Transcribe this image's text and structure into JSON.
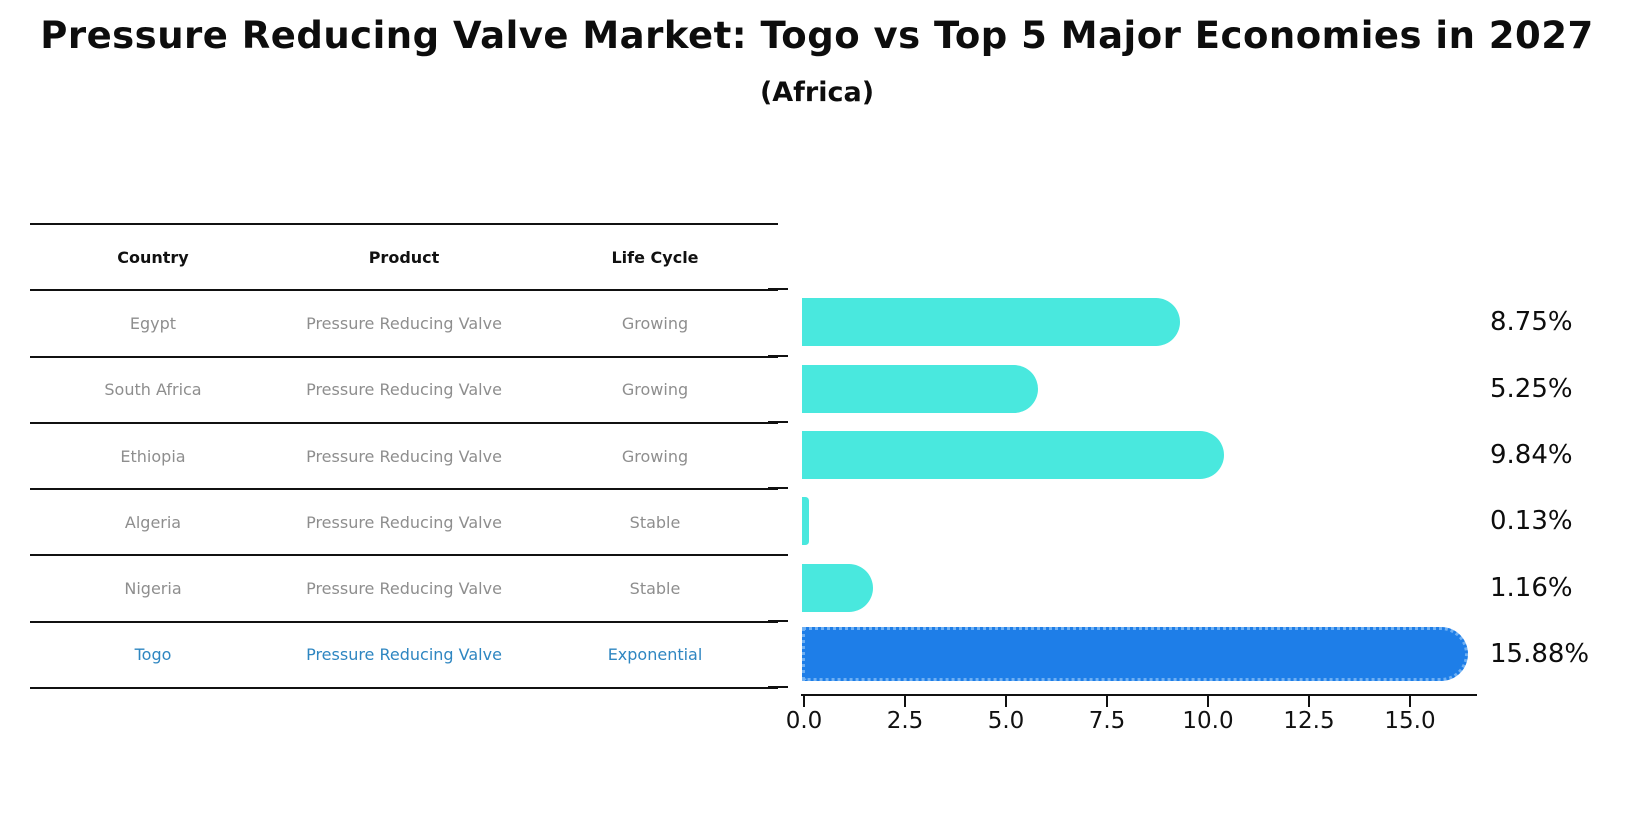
{
  "title": "Pressure Reducing Valve Market: Togo vs Top 5 Major Economies in 2027",
  "subtitle": "(Africa)",
  "table": {
    "columns": [
      "Country",
      "Product",
      "Life Cycle"
    ],
    "rows": [
      {
        "country": "Egypt",
        "product": "Pressure Reducing Valve",
        "life_cycle": "Growing",
        "highlight": false
      },
      {
        "country": "South Africa",
        "product": "Pressure Reducing Valve",
        "life_cycle": "Growing",
        "highlight": false
      },
      {
        "country": "Ethiopia",
        "product": "Pressure Reducing Valve",
        "life_cycle": "Growing",
        "highlight": false
      },
      {
        "country": "Algeria",
        "product": "Pressure Reducing Valve",
        "life_cycle": "Stable",
        "highlight": false
      },
      {
        "country": "Nigeria",
        "product": "Pressure Reducing Valve",
        "life_cycle": "Stable",
        "highlight": false
      },
      {
        "country": "Togo",
        "product": "Pressure Reducing Valve",
        "life_cycle": "Exponential",
        "highlight": true
      }
    ]
  },
  "chart_data": {
    "type": "bar",
    "orientation": "horizontal",
    "title": "Pressure Reducing Valve Market: Togo vs Top 5 Major Economies in 2027 (Africa)",
    "categories": [
      "Egypt",
      "South Africa",
      "Ethiopia",
      "Algeria",
      "Nigeria",
      "Togo"
    ],
    "values": [
      8.75,
      5.25,
      9.84,
      0.13,
      1.16,
      15.88
    ],
    "value_labels": [
      "8.75%",
      "5.25%",
      "9.84%",
      "0.13%",
      "1.16%",
      "15.88%"
    ],
    "x_ticks": [
      "0.0",
      "2.5",
      "5.0",
      "7.5",
      "10.0",
      "12.5",
      "15.0"
    ],
    "x_tick_values": [
      0,
      2.5,
      5,
      7.5,
      10,
      12.5,
      15
    ],
    "xlim": [
      0,
      16.7
    ],
    "grid": false,
    "legend": "none",
    "bar_color": "#49E8DE",
    "highlight_index": 5,
    "highlight_bar_color": "#1E7EE8",
    "highlight_border_color": "#6FB0F3",
    "highlight_text_color": "#2E86C1",
    "table_text_color": "#8E8E8E"
  }
}
